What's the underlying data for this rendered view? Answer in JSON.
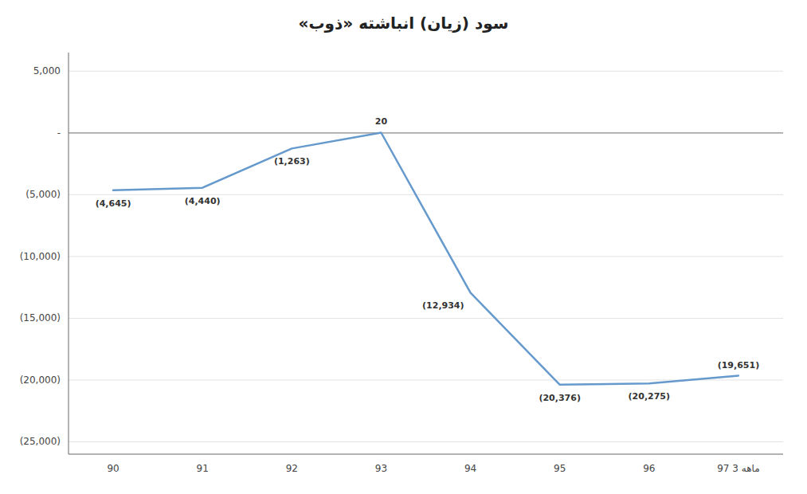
{
  "chart_data": {
    "type": "line",
    "title": "سود (زیان) انباشته «ذوب»",
    "categories": [
      "90",
      "91",
      "92",
      "93",
      "94",
      "95",
      "96",
      "97 ماهه 3"
    ],
    "values": [
      -4645,
      -4440,
      -1263,
      20,
      -12934,
      -20376,
      -20275,
      -19651
    ],
    "value_labels": [
      "(4,645)",
      "(4,440)",
      "(1,263)",
      "20",
      "(12,934)",
      "(20,376)",
      "(20,275)",
      "(19,651)"
    ],
    "data_labels": true,
    "color": "#6699cc",
    "ylim": [
      -26000,
      6500
    ],
    "yticks": [
      {
        "value": 5000,
        "label": "5,000"
      },
      {
        "value": 0,
        "label": "-"
      },
      {
        "value": -5000,
        "label": "(5,000)"
      },
      {
        "value": -10000,
        "label": "(10,000)"
      },
      {
        "value": -15000,
        "label": "(15,000)"
      },
      {
        "value": -20000,
        "label": "(20,000)"
      },
      {
        "value": -25000,
        "label": "(25,000)"
      }
    ],
    "grid": true
  }
}
